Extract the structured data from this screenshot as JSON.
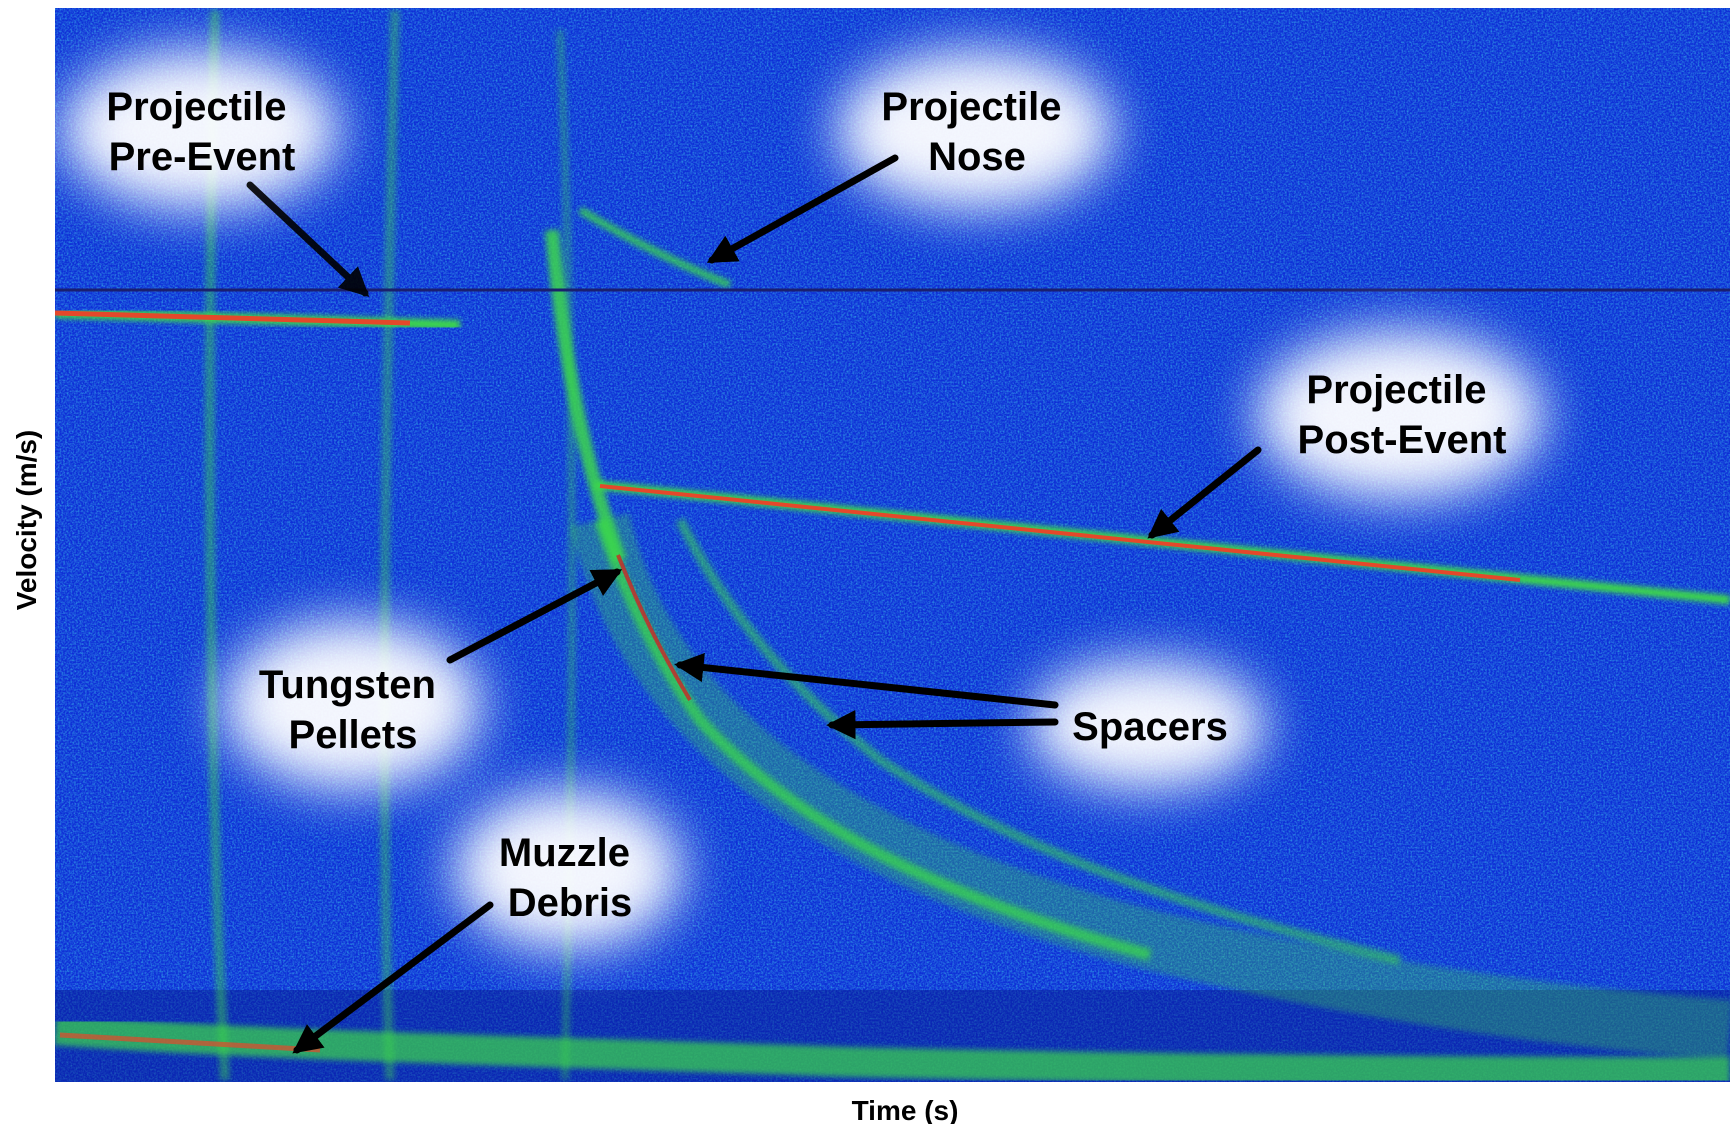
{
  "chart_data": {
    "type": "heatmap",
    "xlabel": "Time (s)",
    "ylabel": "Velocity (m/s)",
    "grid": false,
    "legend": "none",
    "colormap": [
      "#0b1fc4",
      "#1a5cf0",
      "#22b0c8",
      "#32d85a",
      "#c8e03c",
      "#e86a1e",
      "#d81e1e"
    ],
    "background_color": "#0e2ed6",
    "signal_color": "#3cd84a",
    "peak_color": "#e4482a",
    "reference_line_color": "#1a1f6e",
    "annotations": [
      {
        "id": "projectile-pre-event",
        "lines": [
          "Projectile",
          "Pre-Event"
        ]
      },
      {
        "id": "projectile-nose",
        "lines": [
          "Projectile",
          "Nose"
        ]
      },
      {
        "id": "projectile-post-event",
        "lines": [
          "Projectile",
          "Post-Event"
        ]
      },
      {
        "id": "tungsten-pellets",
        "lines": [
          "Tungsten",
          "Pellets"
        ]
      },
      {
        "id": "spacers",
        "lines": [
          "Spacers"
        ]
      },
      {
        "id": "muzzle-debris",
        "lines": [
          "Muzzle",
          "Debris"
        ]
      }
    ]
  }
}
